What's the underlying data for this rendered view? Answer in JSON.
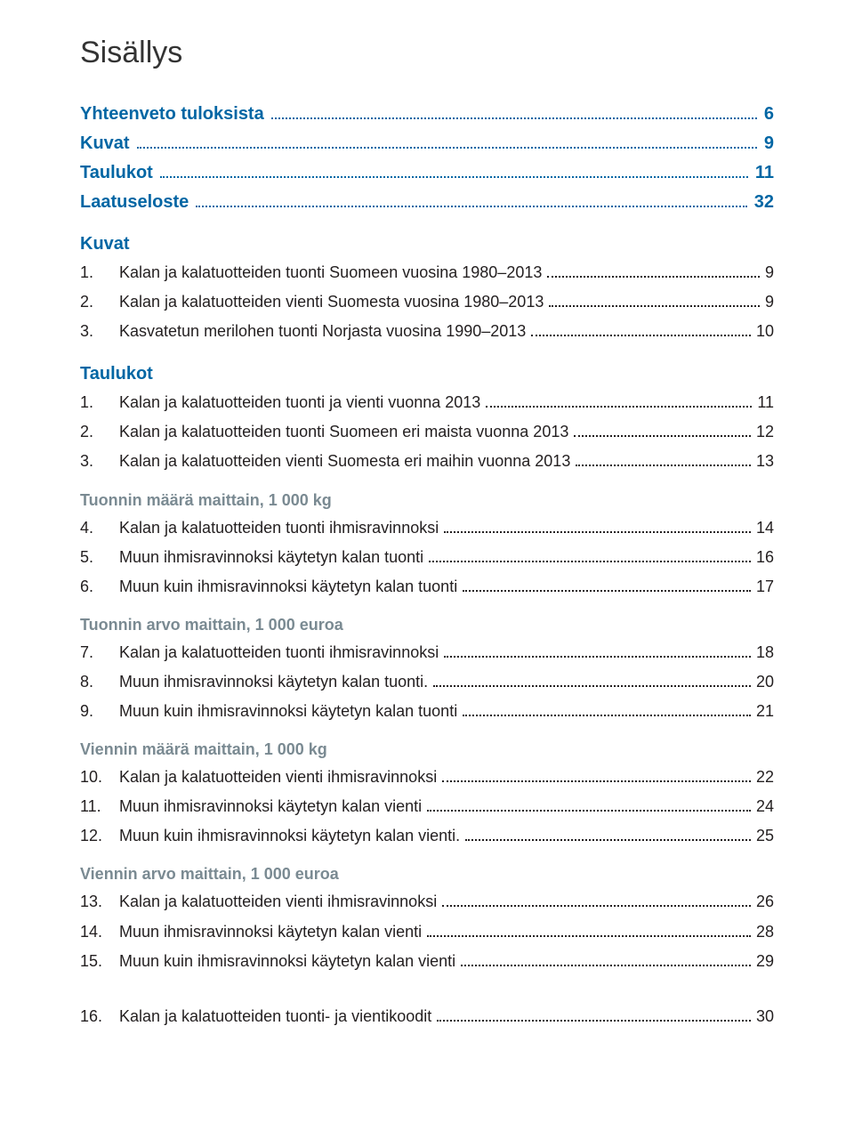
{
  "title": "Sisällys",
  "top_links": [
    {
      "label": "Yhteenveto tuloksista",
      "page": "6"
    },
    {
      "label": "Kuvat",
      "page": "9"
    },
    {
      "label": "Taulukot",
      "page": "11"
    },
    {
      "label": "Laatuseloste",
      "page": "32"
    }
  ],
  "sections": [
    {
      "heading": "Kuvat",
      "heading_kind": "section",
      "entries": [
        {
          "num": "1.",
          "label": "Kalan ja kalatuotteiden tuonti Suomeen vuosina 1980–2013",
          "page": "9"
        },
        {
          "num": "2.",
          "label": "Kalan ja kalatuotteiden vienti Suomesta vuosina 1980–2013",
          "page": "9"
        },
        {
          "num": "3.",
          "label": "Kasvatetun merilohen tuonti Norjasta vuosina 1990–2013",
          "page": "10"
        }
      ]
    },
    {
      "heading": "Taulukot",
      "heading_kind": "section",
      "entries": [
        {
          "num": "1.",
          "label": "Kalan ja kalatuotteiden tuonti ja vienti vuonna 2013",
          "page": "11"
        },
        {
          "num": "2.",
          "label": "Kalan ja kalatuotteiden tuonti Suomeen eri maista vuonna 2013",
          "page": "12"
        },
        {
          "num": "3.",
          "label": "Kalan ja kalatuotteiden vienti Suomesta eri maihin vuonna 2013",
          "page": "13"
        }
      ]
    },
    {
      "heading": "Tuonnin määrä maittain, 1 000 kg",
      "heading_kind": "subsection",
      "entries": [
        {
          "num": "4.",
          "label": "Kalan ja kalatuotteiden tuonti ihmisravinnoksi",
          "page": "14"
        },
        {
          "num": "5.",
          "label": "Muun ihmisravinnoksi käytetyn kalan tuonti",
          "page": "16"
        },
        {
          "num": "6.",
          "label": "Muun kuin ihmisravinnoksi käytetyn kalan tuonti",
          "page": "17"
        }
      ]
    },
    {
      "heading": "Tuonnin arvo maittain, 1 000 euroa",
      "heading_kind": "subsection",
      "entries": [
        {
          "num": "7.",
          "label": "Kalan ja kalatuotteiden tuonti ihmisravinnoksi",
          "page": "18"
        },
        {
          "num": "8.",
          "label": "Muun ihmisravinnoksi käytetyn kalan tuonti.",
          "page": "20"
        },
        {
          "num": "9.",
          "label": "Muun kuin ihmisravinnoksi käytetyn kalan tuonti",
          "page": "21"
        }
      ]
    },
    {
      "heading": "Viennin määrä maittain, 1 000 kg",
      "heading_kind": "subsection",
      "entries": [
        {
          "num": "10.",
          "label": "Kalan ja kalatuotteiden vienti ihmisravinnoksi",
          "page": "22"
        },
        {
          "num": "11.",
          "label": "Muun ihmisravinnoksi käytetyn kalan vienti",
          "page": "24"
        },
        {
          "num": "12.",
          "label": "Muun kuin ihmisravinnoksi käytetyn kalan vienti.",
          "page": "25"
        }
      ]
    },
    {
      "heading": "Viennin arvo maittain, 1 000 euroa",
      "heading_kind": "subsection",
      "entries": [
        {
          "num": "13.",
          "label": "Kalan ja kalatuotteiden vienti ihmisravinnoksi",
          "page": "26"
        },
        {
          "num": "14.",
          "label": "Muun ihmisravinnoksi käytetyn kalan vienti",
          "page": "28"
        },
        {
          "num": "15.",
          "label": "Muun kuin ihmisravinnoksi käytetyn kalan vienti",
          "page": "29"
        }
      ]
    }
  ],
  "trailing_entries": [
    {
      "num": "16.",
      "label": "Kalan ja kalatuotteiden tuonti- ja vientikoodit",
      "page": "30"
    }
  ],
  "colors": {
    "link": "#0066a4",
    "subsection": "#7a8a92",
    "text": "#231f20",
    "background": "#ffffff"
  },
  "font_sizes": {
    "title": 34,
    "section": 20,
    "subsection": 18,
    "entry": 18
  }
}
